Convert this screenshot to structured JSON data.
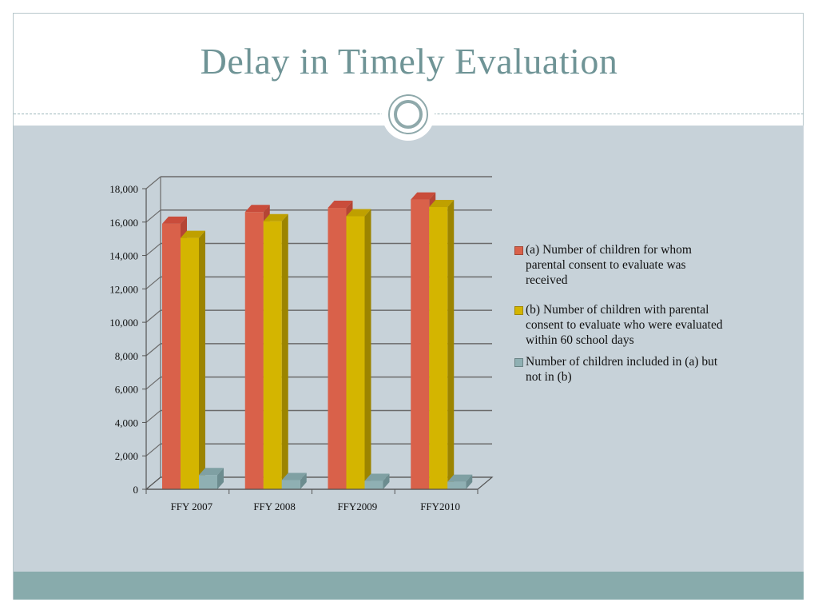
{
  "slide": {
    "title": "Delay in Timely Evaluation"
  },
  "colors": {
    "title": "#6f9496",
    "panel": "#c7d2d9",
    "footer": "#88abac",
    "series_a": "#d9614a",
    "series_b": "#d4b500",
    "series_c": "#8fb0b3"
  },
  "chart_data": {
    "type": "bar",
    "categories": [
      "FFY 2007",
      "FFY 2008",
      "FFY2009",
      "FFY2010"
    ],
    "series": [
      {
        "name": "(a) Number of children for whom parental consent to evaluate was received",
        "values": [
          15900,
          16600,
          16850,
          17350
        ]
      },
      {
        "name": "(b) Number of children with parental consent to evaluate who were evaluated within 60 school days",
        "values": [
          15050,
          16050,
          16350,
          16900
        ]
      },
      {
        "name": "Number of children included in (a) but not in (b)",
        "values": [
          850,
          550,
          500,
          450
        ]
      }
    ],
    "ylim": [
      0,
      18000
    ],
    "yticks": [
      "0",
      "2,000",
      "4,000",
      "6,000",
      "8,000",
      "10,000",
      "12,000",
      "14,000",
      "16,000",
      "18,000"
    ],
    "grid": true,
    "legend_position": "right",
    "style": "3d-clustered-column"
  }
}
